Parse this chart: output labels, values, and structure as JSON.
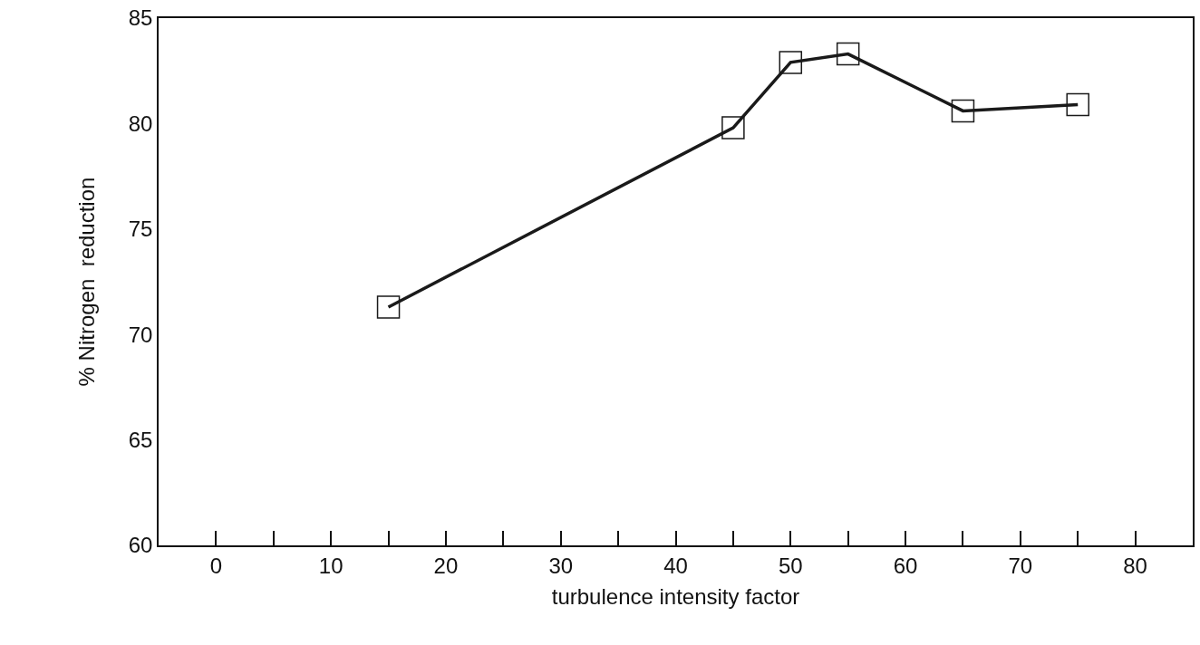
{
  "chart_data": {
    "type": "line",
    "xlabel": "turbulence intensity factor",
    "ylabel": "% Nitrogen  reduction",
    "x": [
      15,
      45,
      50,
      55,
      65,
      75
    ],
    "series": [
      {
        "color": "#1a1a1a",
        "values": [
          71.3,
          79.8,
          82.9,
          83.3,
          80.6,
          80.9
        ]
      }
    ],
    "xlim": [
      -5,
      85
    ],
    "xticks": [
      {
        "value": -5,
        "label": null
      },
      0,
      {
        "value": 5,
        "label": null
      },
      10,
      {
        "value": 15,
        "label": null
      },
      20,
      {
        "value": 25,
        "label": null
      },
      30,
      {
        "value": 35,
        "label": null
      },
      40,
      {
        "value": 45,
        "label": null
      },
      50,
      {
        "value": 55,
        "label": null
      },
      60,
      {
        "value": 65,
        "label": null
      },
      70,
      {
        "value": 75,
        "label": null
      },
      80
    ],
    "ylim": [
      60,
      85
    ],
    "yticks": [
      60,
      65,
      70,
      75,
      80,
      85
    ],
    "grid": false,
    "marker": "square",
    "line_style": "solid"
  }
}
